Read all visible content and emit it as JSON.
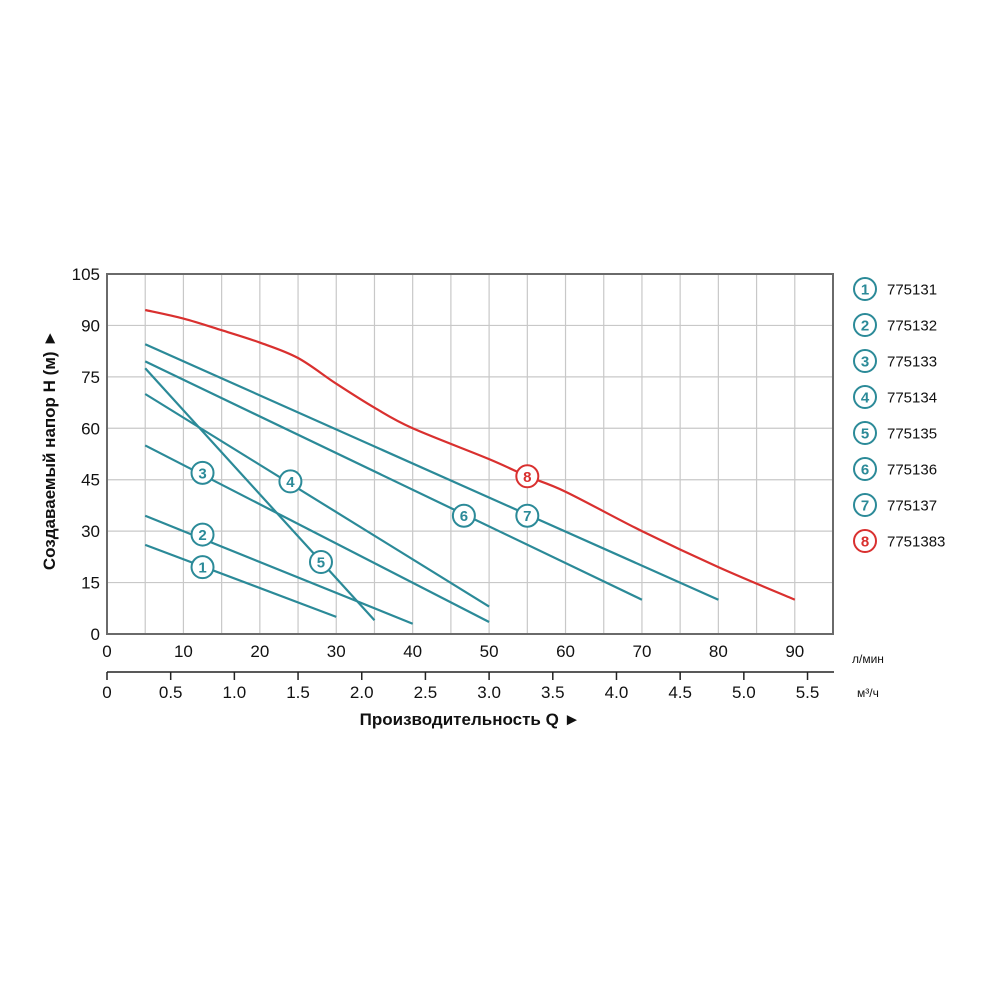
{
  "chart_data": {
    "type": "line",
    "xlabel": "Производительность Q ►",
    "ylabel": "Создаваемый напор H (м) ►",
    "x_unit": "л/мин",
    "x2_unit": "м³/ч",
    "xlim": [
      0,
      95
    ],
    "ylim": [
      0,
      105
    ],
    "x_ticks": [
      "0",
      "10",
      "20",
      "30",
      "40",
      "50",
      "60",
      "70",
      "80",
      "90"
    ],
    "x2_ticks": [
      "0",
      "0.5",
      "1.0",
      "1.5",
      "2.0",
      "2.5",
      "3.0",
      "3.5",
      "4.0",
      "4.5",
      "5.0",
      "5.5"
    ],
    "y_ticks": [
      "0",
      "15",
      "30",
      "45",
      "60",
      "75",
      "90",
      "105"
    ],
    "grid": true,
    "legend_position": "right",
    "colors": {
      "teal": "#2b8a98",
      "red": "#d9302f",
      "grid": "#c8c8c8"
    },
    "series": [
      {
        "marker": "1",
        "name": "775131",
        "color": "#2b8a98",
        "x": [
          5,
          30
        ],
        "y": [
          26,
          5
        ],
        "label_at": [
          12.5,
          19.5
        ]
      },
      {
        "marker": "2",
        "name": "775132",
        "color": "#2b8a98",
        "x": [
          5,
          40
        ],
        "y": [
          34.5,
          3
        ],
        "label_at": [
          12.5,
          29
        ]
      },
      {
        "marker": "3",
        "name": "775133",
        "color": "#2b8a98",
        "x": [
          5,
          50
        ],
        "y": [
          55,
          3.5
        ],
        "label_at": [
          12.5,
          47
        ]
      },
      {
        "marker": "4",
        "name": "775134",
        "color": "#2b8a98",
        "x": [
          5,
          50
        ],
        "y": [
          70,
          8
        ],
        "label_at": [
          24,
          44.5
        ]
      },
      {
        "marker": "5",
        "name": "775135",
        "color": "#2b8a98",
        "x": [
          5,
          35
        ],
        "y": [
          77.5,
          4
        ],
        "label_at": [
          28,
          21
        ]
      },
      {
        "marker": "6",
        "name": "775136",
        "color": "#2b8a98",
        "x": [
          5,
          70
        ],
        "y": [
          79.5,
          10
        ],
        "label_at": [
          46.7,
          34.5
        ]
      },
      {
        "marker": "7",
        "name": "775137",
        "color": "#2b8a98",
        "x": [
          5,
          80
        ],
        "y": [
          84.5,
          10
        ],
        "label_at": [
          55,
          34.5
        ]
      },
      {
        "marker": "8",
        "name": "7751383",
        "color": "#d9302f",
        "x": [
          5,
          10,
          15,
          20,
          25,
          30,
          35,
          40,
          50,
          55,
          60,
          70,
          80,
          90
        ],
        "y": [
          94.5,
          92,
          88.6,
          85,
          80.5,
          73,
          66,
          60,
          51,
          46,
          41.5,
          30,
          19.5,
          10
        ],
        "label_at": [
          55,
          46
        ]
      }
    ]
  }
}
